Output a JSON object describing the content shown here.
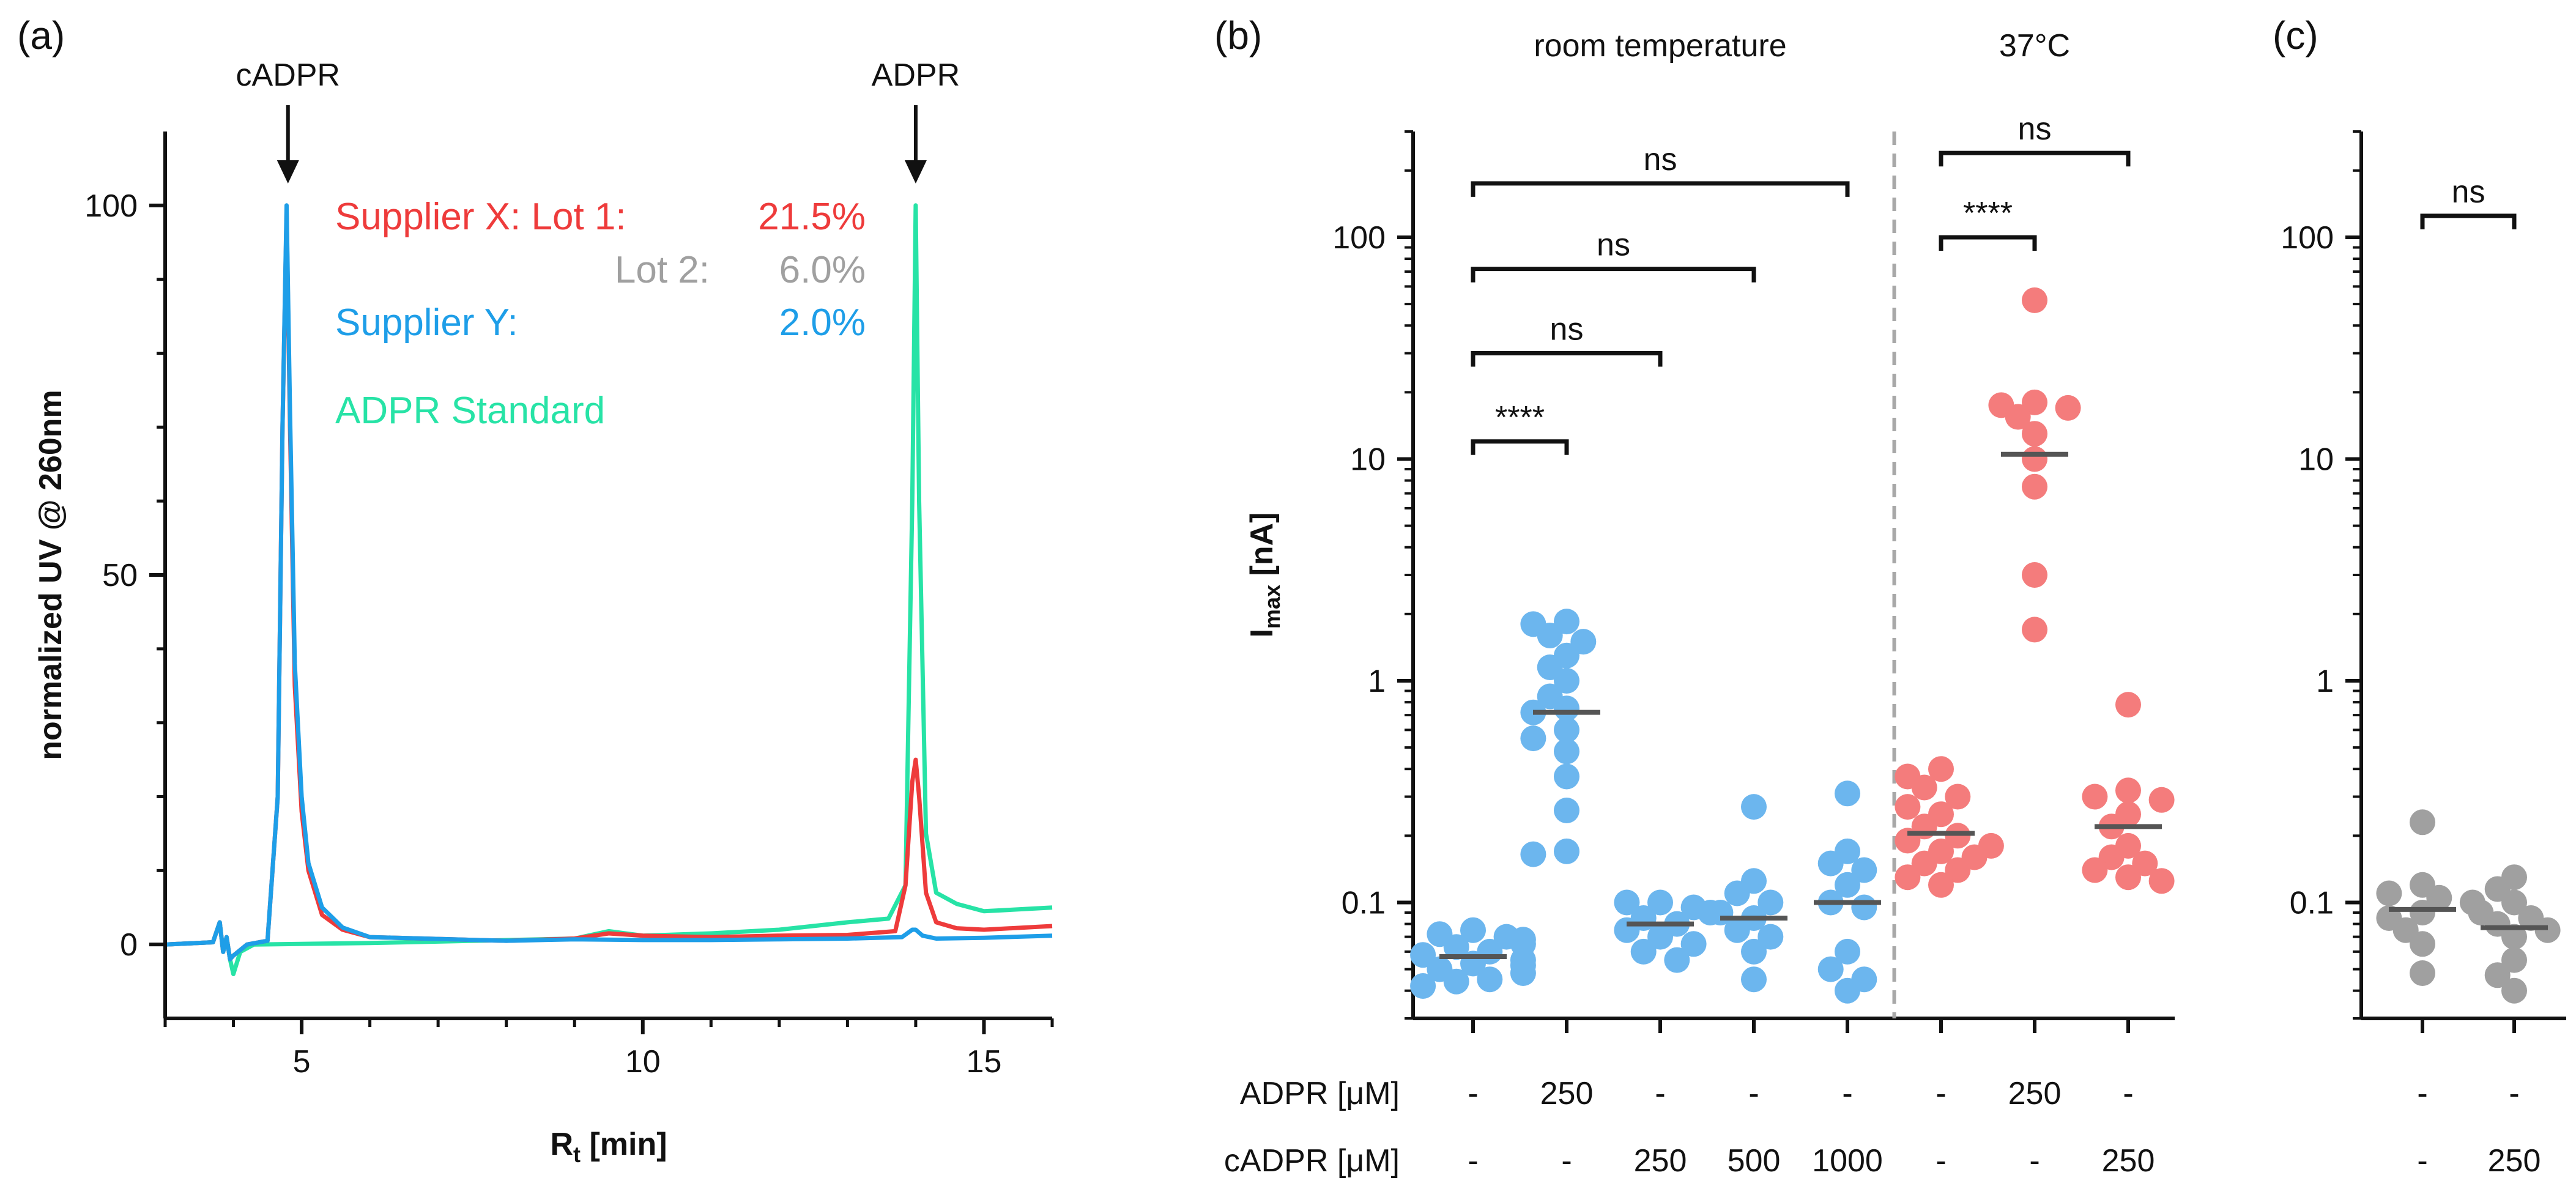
{
  "chart_data": [
    {
      "panel": "(a)",
      "type": "line",
      "title": "",
      "xlabel": "R",
      "xlabel_sub": "t",
      "xlabel_suffix": " [min]",
      "ylabel": "normalized UV @ 260nm",
      "xlim": [
        3,
        16
      ],
      "ylim": [
        -10,
        110
      ],
      "xticks": [
        5,
        10,
        15
      ],
      "yticks": [
        0,
        50,
        100
      ],
      "grid": false,
      "arrows": [
        {
          "label": "cADPR",
          "x": 4.8
        },
        {
          "label": "ADPR",
          "x": 14.0
        }
      ],
      "legend": [
        {
          "text": "Supplier X: Lot 1:",
          "value": "21.5%",
          "color": "#ee3b3b"
        },
        {
          "text": "Lot 2:",
          "value": "6.0%",
          "color": "#a0a0a0"
        },
        {
          "text": "Supplier Y:",
          "value": "2.0%",
          "color": "#1e9ee8"
        },
        {
          "text": "ADPR Standard",
          "value": "",
          "color": "#27e3a6"
        }
      ],
      "series": [
        {
          "name": "ADPR Standard",
          "color": "#27e3a6",
          "points": [
            [
              3,
              0
            ],
            [
              3.7,
              0.3
            ],
            [
              3.8,
              3
            ],
            [
              3.85,
              -1
            ],
            [
              3.9,
              1
            ],
            [
              3.95,
              -2
            ],
            [
              4.0,
              -4
            ],
            [
              4.1,
              -1
            ],
            [
              4.3,
              0
            ],
            [
              6,
              0.2
            ],
            [
              9,
              0.8
            ],
            [
              9.5,
              1.8
            ],
            [
              10,
              1.2
            ],
            [
              11,
              1.5
            ],
            [
              12,
              2
            ],
            [
              13,
              3
            ],
            [
              13.6,
              3.5
            ],
            [
              13.85,
              8
            ],
            [
              13.95,
              60
            ],
            [
              14.0,
              100
            ],
            [
              14.05,
              60
            ],
            [
              14.15,
              15
            ],
            [
              14.3,
              7
            ],
            [
              14.6,
              5.5
            ],
            [
              15,
              4.5
            ],
            [
              16,
              5
            ]
          ]
        },
        {
          "name": "Supplier X Lot 1",
          "color": "#ee3b3b",
          "points": [
            [
              3,
              0
            ],
            [
              3.7,
              0.3
            ],
            [
              3.8,
              3
            ],
            [
              3.85,
              -1
            ],
            [
              3.9,
              1
            ],
            [
              3.95,
              -2
            ],
            [
              4.0,
              -1.5
            ],
            [
              4.2,
              0
            ],
            [
              4.5,
              0.5
            ],
            [
              4.65,
              20
            ],
            [
              4.72,
              70
            ],
            [
              4.78,
              99
            ],
            [
              4.83,
              70
            ],
            [
              4.9,
              35
            ],
            [
              5.0,
              18
            ],
            [
              5.1,
              10
            ],
            [
              5.3,
              4
            ],
            [
              5.6,
              2
            ],
            [
              6,
              1
            ],
            [
              8,
              0.5
            ],
            [
              9,
              0.8
            ],
            [
              9.5,
              1.5
            ],
            [
              10,
              1.2
            ],
            [
              11,
              1
            ],
            [
              12,
              1.2
            ],
            [
              13,
              1.3
            ],
            [
              13.7,
              1.8
            ],
            [
              13.85,
              8
            ],
            [
              13.95,
              22
            ],
            [
              14.0,
              25
            ],
            [
              14.05,
              20
            ],
            [
              14.15,
              7
            ],
            [
              14.3,
              3
            ],
            [
              14.6,
              2.2
            ],
            [
              15,
              2
            ],
            [
              16,
              2.5
            ]
          ]
        },
        {
          "name": "Supplier Y",
          "color": "#1e9ee8",
          "points": [
            [
              3,
              0
            ],
            [
              3.7,
              0.3
            ],
            [
              3.8,
              3
            ],
            [
              3.85,
              -1
            ],
            [
              3.9,
              1
            ],
            [
              3.95,
              -2
            ],
            [
              4.0,
              -1.5
            ],
            [
              4.2,
              0
            ],
            [
              4.5,
              0.5
            ],
            [
              4.65,
              20
            ],
            [
              4.72,
              70
            ],
            [
              4.78,
              100
            ],
            [
              4.83,
              72
            ],
            [
              4.9,
              38
            ],
            [
              5.0,
              20
            ],
            [
              5.1,
              11
            ],
            [
              5.3,
              5
            ],
            [
              5.6,
              2.3
            ],
            [
              6,
              1
            ],
            [
              8,
              0.5
            ],
            [
              9,
              0.7
            ],
            [
              10,
              0.6
            ],
            [
              11,
              0.6
            ],
            [
              12,
              0.7
            ],
            [
              13,
              0.8
            ],
            [
              13.8,
              1
            ],
            [
              13.95,
              2
            ],
            [
              14.0,
              2
            ],
            [
              14.1,
              1.2
            ],
            [
              14.3,
              0.8
            ],
            [
              15,
              0.9
            ],
            [
              16,
              1.2
            ]
          ]
        }
      ]
    },
    {
      "panel": "(b)",
      "type": "scatter",
      "yscale": "log",
      "ylabel": "I",
      "ylabel_sub": "max",
      "ylabel_suffix": " [nA]",
      "ylim": [
        0.03,
        300
      ],
      "yticks": [
        {
          "value": 0.1,
          "label": "0.1"
        },
        {
          "value": 1,
          "label": "1"
        },
        {
          "value": 10,
          "label": "10"
        },
        {
          "value": 100,
          "label": "100"
        }
      ],
      "group_headers": [
        {
          "text": "room temperature",
          "over": [
            0,
            4
          ]
        },
        {
          "text": "37°C",
          "over": [
            5,
            7
          ]
        }
      ],
      "row_labels": [
        "ADPR [μM]",
        "cADPR [μM]"
      ],
      "categories": [
        {
          "adpr": "-",
          "cadpr": "-",
          "color": "#6cb6ee",
          "median": 0.057,
          "values": [
            0.045,
            0.05,
            0.055,
            0.06,
            0.065,
            0.07,
            0.075,
            0.042,
            0.048,
            0.052,
            0.058,
            0.063,
            0.068,
            0.072,
            0.044,
            0.053
          ]
        },
        {
          "adpr": "250",
          "cadpr": "-",
          "color": "#6cb6ee",
          "median": 0.72,
          "values": [
            1.85,
            1.8,
            1.5,
            1.6,
            1.3,
            1.15,
            1.0,
            0.85,
            0.75,
            0.72,
            0.6,
            0.55,
            0.48,
            0.37,
            0.26,
            0.17,
            0.165
          ]
        },
        {
          "adpr": "-",
          "cadpr": "250",
          "color": "#6cb6ee",
          "median": 0.08,
          "values": [
            0.1,
            0.095,
            0.09,
            0.085,
            0.08,
            0.075,
            0.065,
            0.06,
            0.055,
            0.07,
            0.1
          ]
        },
        {
          "adpr": "-",
          "cadpr": "500",
          "color": "#6cb6ee",
          "median": 0.085,
          "values": [
            0.27,
            0.125,
            0.11,
            0.1,
            0.09,
            0.085,
            0.075,
            0.06,
            0.045,
            0.07
          ]
        },
        {
          "adpr": "-",
          "cadpr": "1000",
          "color": "#6cb6ee",
          "median": 0.1,
          "values": [
            0.31,
            0.17,
            0.15,
            0.14,
            0.12,
            0.1,
            0.095,
            0.06,
            0.05,
            0.045,
            0.04
          ]
        },
        {
          "adpr": "-",
          "cadpr": "-",
          "color": "#f47c7c",
          "median": 0.205,
          "values": [
            0.4,
            0.37,
            0.33,
            0.3,
            0.27,
            0.25,
            0.22,
            0.2,
            0.19,
            0.18,
            0.17,
            0.16,
            0.15,
            0.14,
            0.13,
            0.12
          ]
        },
        {
          "adpr": "250",
          "cadpr": "-",
          "color": "#f47c7c",
          "median": 10.5,
          "values": [
            52,
            18,
            17.5,
            17,
            15.5,
            13,
            10,
            7.5,
            3,
            1.7
          ]
        },
        {
          "adpr": "-",
          "cadpr": "250",
          "color": "#f47c7c",
          "median": 0.22,
          "values": [
            0.78,
            0.32,
            0.3,
            0.29,
            0.25,
            0.22,
            0.18,
            0.16,
            0.15,
            0.14,
            0.13,
            0.125
          ]
        }
      ],
      "divider_after": 4,
      "significance": [
        {
          "from": 0,
          "to": 1,
          "y": 12,
          "label": "****"
        },
        {
          "from": 0,
          "to": 2,
          "y": 30,
          "label": "ns"
        },
        {
          "from": 0,
          "to": 3,
          "y": 72,
          "label": "ns"
        },
        {
          "from": 0,
          "to": 4,
          "y": 175,
          "label": "ns"
        },
        {
          "from": 5,
          "to": 6,
          "y": 100,
          "label": "****"
        },
        {
          "from": 5,
          "to": 7,
          "y": 240,
          "label": "ns"
        }
      ]
    },
    {
      "panel": "(c)",
      "type": "scatter",
      "yscale": "log",
      "ylim": [
        0.03,
        300
      ],
      "yticks": [
        {
          "value": 0.1,
          "label": "0.1"
        },
        {
          "value": 1,
          "label": "1"
        },
        {
          "value": 10,
          "label": "10"
        },
        {
          "value": 100,
          "label": "100"
        }
      ],
      "categories": [
        {
          "adpr": "-",
          "cadpr": "-",
          "color": "#a0a0a0",
          "median": 0.093,
          "values": [
            0.23,
            0.12,
            0.11,
            0.105,
            0.1,
            0.09,
            0.085,
            0.075,
            0.065,
            0.048
          ]
        },
        {
          "adpr": "-",
          "cadpr": "250",
          "color": "#a0a0a0",
          "median": 0.077,
          "values": [
            0.13,
            0.115,
            0.1,
            0.09,
            0.085,
            0.08,
            0.075,
            0.07,
            0.055,
            0.047,
            0.04
          ]
        }
      ],
      "significance": [
        {
          "from": 0,
          "to": 1,
          "y": 125,
          "label": "ns"
        }
      ]
    }
  ]
}
